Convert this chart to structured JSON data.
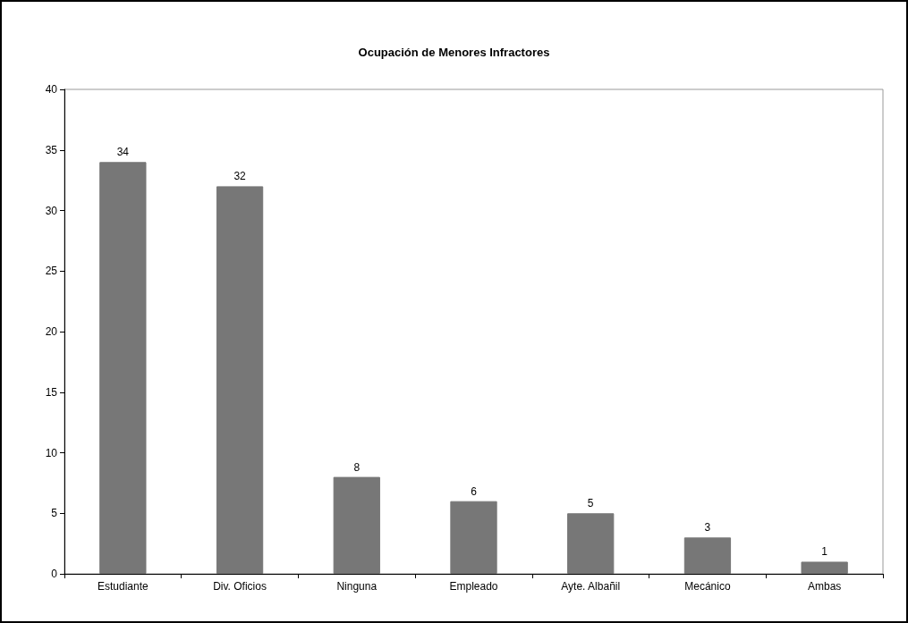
{
  "chart_data": {
    "type": "bar",
    "title": "Ocupación de Menores Infractores",
    "categories": [
      "Estudiante",
      "Div. Oficios",
      "Ninguna",
      "Empleado",
      "Ayte. Albañil",
      "Mecánico",
      "Ambas"
    ],
    "values": [
      34,
      32,
      8,
      6,
      5,
      3,
      1
    ],
    "color": "#777777",
    "ylim": [
      0,
      40
    ],
    "yticks": [
      0,
      5,
      10,
      15,
      20,
      25,
      30,
      35,
      40
    ],
    "grid": false,
    "data_labels": true
  }
}
